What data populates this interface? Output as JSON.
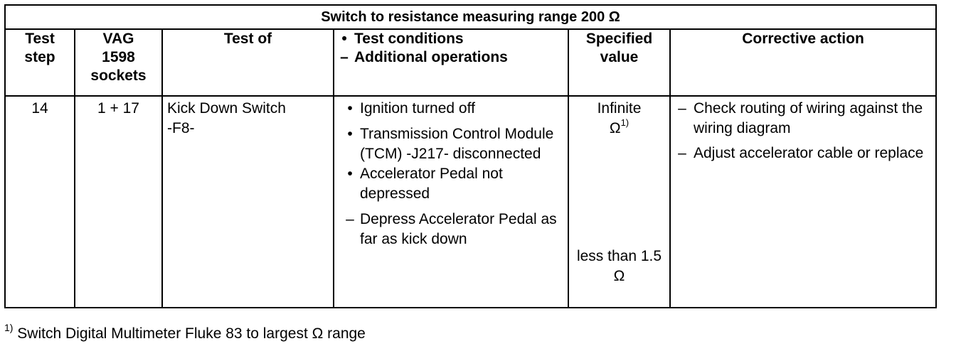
{
  "banner": "Switch to resistance measuring range 200 Ω",
  "headers": {
    "test_step_l1": "Test",
    "test_step_l2": "step",
    "vag_l1": "VAG",
    "vag_l2": "1598",
    "vag_l3": "sockets",
    "test_of": "Test of",
    "cond_l1": "Test conditions",
    "cond_l2": "Additional operations",
    "spec_l1": "Specified",
    "spec_l2": "value",
    "corrective": "Corrective action"
  },
  "row": {
    "step": "14",
    "sockets": "1 + 17",
    "test_of_l1": "Kick Down Switch",
    "test_of_l2": "-F8-",
    "conditions": [
      {
        "marker": "•",
        "text": "Ignition turned off"
      },
      {
        "marker": "•",
        "text": "Transmission Control Module (TCM) -J217- disconnected"
      },
      {
        "marker": "•",
        "text": "Accelerator Pedal not depressed"
      },
      {
        "marker": "–",
        "text": "Depress Accelerator Pedal as far as kick down"
      }
    ],
    "spec1_l1": "Infinite",
    "spec1_l2": "Ω",
    "spec1_sup": "1)",
    "spec2_l1": "less than 1.5",
    "spec2_l2": "Ω",
    "corrective": [
      {
        "marker": "–",
        "text": "Check routing of wiring against the wiring diagram"
      },
      {
        "marker": "–",
        "text": "Adjust accelerator cable or replace"
      }
    ]
  },
  "footnote": {
    "marker": "1)",
    "text": "Switch Digital Multimeter Fluke 83 to largest Ω range"
  }
}
